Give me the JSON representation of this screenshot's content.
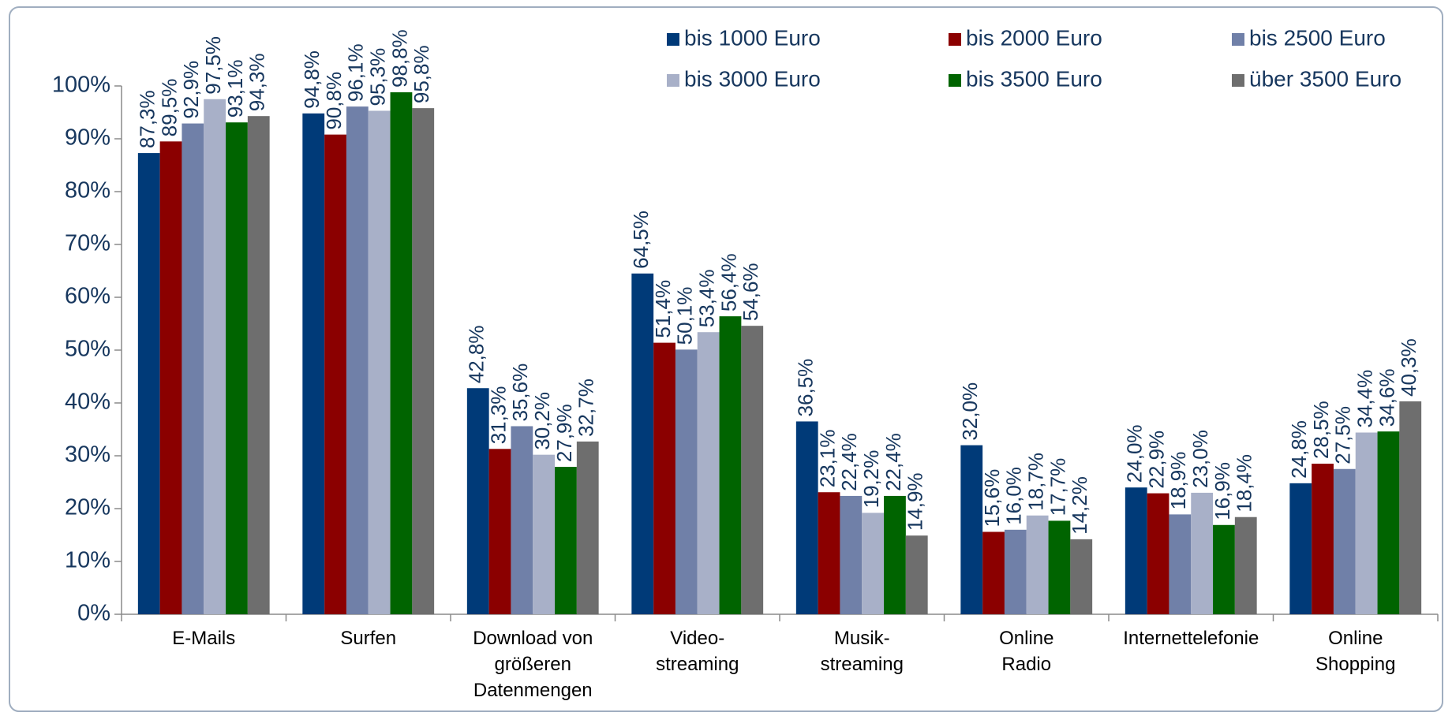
{
  "chart_data": {
    "type": "bar",
    "categories": [
      "E-Mails",
      "Surfen",
      "Download von\ngrößeren\nDatenmengen",
      "Video-\nstreaming",
      "Musik-\nstreaming",
      "Online\nRadio",
      "Internettelefonie",
      "Online\nShopping"
    ],
    "series": [
      {
        "name": "bis 1000 Euro",
        "color": "#003a78",
        "values": [
          87.3,
          94.8,
          42.8,
          64.5,
          36.5,
          32.0,
          24.0,
          24.8
        ],
        "value_labels": [
          "87,3%",
          "94,8%",
          "42,8%",
          "64,5%",
          "36,5%",
          "32,0%",
          "24,0%",
          "24,8%"
        ]
      },
      {
        "name": "bis 2000 Euro",
        "color": "#8b0000",
        "values": [
          89.5,
          90.8,
          31.3,
          51.4,
          23.1,
          15.6,
          22.9,
          28.5
        ],
        "value_labels": [
          "89,5%",
          "90,8%",
          "31,3%",
          "51,4%",
          "23,1%",
          "15,6%",
          "22,9%",
          "28,5%"
        ]
      },
      {
        "name": "bis 2500 Euro",
        "color": "#7080a8",
        "values": [
          92.9,
          96.1,
          35.6,
          50.1,
          22.4,
          16.0,
          18.9,
          27.5
        ],
        "value_labels": [
          "92,9%",
          "96,1%",
          "35,6%",
          "50,1%",
          "22,4%",
          "16,0%",
          "18,9%",
          "27,5%"
        ]
      },
      {
        "name": "bis 3000 Euro",
        "color": "#a8b0c8",
        "values": [
          97.5,
          95.3,
          30.2,
          53.4,
          19.2,
          18.7,
          23.0,
          34.4
        ],
        "value_labels": [
          "97,5%",
          "95,3%",
          "30,2%",
          "53,4%",
          "19,2%",
          "18,7%",
          "23,0%",
          "34,4%"
        ]
      },
      {
        "name": "bis 3500 Euro",
        "color": "#006400",
        "values": [
          93.1,
          98.8,
          27.9,
          56.4,
          22.4,
          17.7,
          16.9,
          34.6
        ],
        "value_labels": [
          "93,1%",
          "98,8%",
          "27,9%",
          "56,4%",
          "22,4%",
          "17,7%",
          "16,9%",
          "34,6%"
        ]
      },
      {
        "name": "über 3500 Euro",
        "color": "#6e6e6e",
        "values": [
          94.3,
          95.8,
          32.7,
          54.6,
          14.9,
          14.2,
          18.4,
          40.3
        ],
        "value_labels": [
          "94,3%",
          "95,8%",
          "32,7%",
          "54,6%",
          "14,9%",
          "14,2%",
          "18,4%",
          "40,3%"
        ]
      }
    ],
    "ylim": [
      0,
      100
    ],
    "yticks": [
      {
        "value": 0,
        "label": "0%"
      },
      {
        "value": 10,
        "label": "10%"
      },
      {
        "value": 20,
        "label": "20%"
      },
      {
        "value": 30,
        "label": "30%"
      },
      {
        "value": 40,
        "label": "40%"
      },
      {
        "value": 50,
        "label": "50%"
      },
      {
        "value": 60,
        "label": "60%"
      },
      {
        "value": 70,
        "label": "70%"
      },
      {
        "value": 80,
        "label": "80%"
      },
      {
        "value": 90,
        "label": "90%"
      },
      {
        "value": 100,
        "label": "100%"
      }
    ]
  }
}
